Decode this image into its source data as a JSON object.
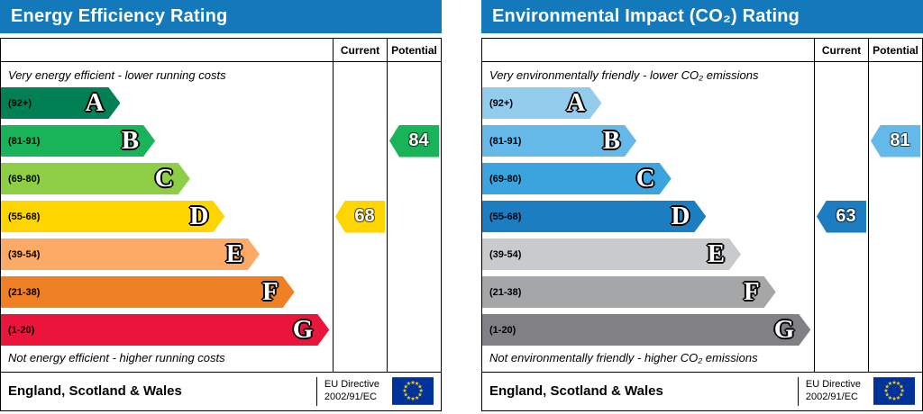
{
  "chart_data": [
    {
      "type": "bar",
      "title": "Energy Efficiency Rating",
      "header_color": "#1479bb",
      "columns": {
        "current": "Current",
        "potential": "Potential"
      },
      "top_note": "Very energy efficient - lower running costs",
      "bottom_note": "Not energy efficient - higher running costs",
      "bands": [
        {
          "label": "A",
          "range": "(92+)",
          "color": "#008054",
          "width_pct": 36
        },
        {
          "label": "B",
          "range": "(81-91)",
          "color": "#19b459",
          "width_pct": 46.5
        },
        {
          "label": "C",
          "range": "(69-80)",
          "color": "#8dce46",
          "width_pct": 57
        },
        {
          "label": "D",
          "range": "(55-68)",
          "color": "#ffd500",
          "width_pct": 67.5
        },
        {
          "label": "E",
          "range": "(39-54)",
          "color": "#fcaa65",
          "width_pct": 78
        },
        {
          "label": "F",
          "range": "(21-38)",
          "color": "#ef8023",
          "width_pct": 88.5
        },
        {
          "label": "G",
          "range": "(1-20)",
          "color": "#e9153b",
          "width_pct": 99
        }
      ],
      "current": {
        "value": 68,
        "band": "D",
        "color": "#ffd500"
      },
      "potential": {
        "value": 84,
        "band": "B",
        "color": "#19b459"
      },
      "footer": {
        "region": "England, Scotland & Wales",
        "directive_line1": "EU Directive",
        "directive_line2": "2002/91/EC"
      }
    },
    {
      "type": "bar",
      "title": "Environmental Impact (CO₂) Rating",
      "header_color": "#1479bb",
      "columns": {
        "current": "Current",
        "potential": "Potential"
      },
      "top_note": "Very environmentally friendly - lower CO₂ emissions",
      "bottom_note": "Not environmentally friendly - higher CO₂ emissions",
      "bands": [
        {
          "label": "A",
          "range": "(92+)",
          "color": "#92cdee",
          "width_pct": 36
        },
        {
          "label": "B",
          "range": "(81-91)",
          "color": "#64b9e9",
          "width_pct": 46.5
        },
        {
          "label": "C",
          "range": "(69-80)",
          "color": "#3ba3de",
          "width_pct": 57
        },
        {
          "label": "D",
          "range": "(55-68)",
          "color": "#1d7dc1",
          "width_pct": 67.5
        },
        {
          "label": "E",
          "range": "(39-54)",
          "color": "#c9cacc",
          "width_pct": 78
        },
        {
          "label": "F",
          "range": "(21-38)",
          "color": "#a5a6a8",
          "width_pct": 88.5
        },
        {
          "label": "G",
          "range": "(1-20)",
          "color": "#818185",
          "width_pct": 99
        }
      ],
      "current": {
        "value": 63,
        "band": "D",
        "color": "#1d7dc1"
      },
      "potential": {
        "value": 81,
        "band": "B",
        "color": "#64b9e9"
      },
      "footer": {
        "region": "England, Scotland & Wales",
        "directive_line1": "EU Directive",
        "directive_line2": "2002/91/EC"
      }
    }
  ],
  "eu_flag": {
    "background": "#003399",
    "star_color": "#ffcc00",
    "stars": 12
  }
}
